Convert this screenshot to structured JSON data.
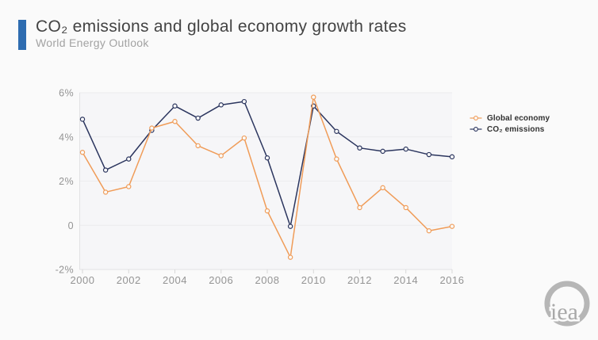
{
  "header": {
    "title": "CO₂ emissions and global economy growth rates",
    "subtitle": "World Energy Outlook"
  },
  "legend": {
    "items": [
      {
        "label": "Global economy",
        "color": "#f09c58"
      },
      {
        "label": "CO₂ emissions",
        "color": "#2b355e"
      }
    ]
  },
  "logo": {
    "text": "iea"
  },
  "colors": {
    "background": "#fafafa",
    "plot_background": "#f6f6f8",
    "grid": "#ececee",
    "axis": "#e2e2e4",
    "tick": "#d8d8d8",
    "axis_label": "#949494",
    "title": "#434343",
    "subtitle": "#a2a2a2",
    "accent": "#2e6cb0",
    "legend_text": "#323232",
    "logo": "#b6b6b6",
    "marker_fill": "#fafafa"
  },
  "chart_data": {
    "type": "line",
    "title": "CO₂ emissions and global economy growth rates",
    "subtitle": "World Energy Outlook",
    "x": [
      2000,
      2001,
      2002,
      2003,
      2004,
      2005,
      2006,
      2007,
      2008,
      2009,
      2010,
      2011,
      2012,
      2013,
      2014,
      2015,
      2016
    ],
    "series": [
      {
        "name": "Global economy",
        "color": "#f09c58",
        "values": [
          3.3,
          1.5,
          1.75,
          4.4,
          4.7,
          3.6,
          3.15,
          3.95,
          0.65,
          -1.45,
          5.8,
          3.0,
          0.8,
          1.7,
          0.8,
          -0.25,
          -0.05
        ]
      },
      {
        "name": "CO₂ emissions",
        "color": "#2b355e",
        "values": [
          4.8,
          2.5,
          3.0,
          4.3,
          5.4,
          4.85,
          5.45,
          5.6,
          3.05,
          -0.05,
          5.4,
          4.25,
          3.5,
          3.35,
          3.45,
          3.2,
          3.1
        ]
      }
    ],
    "yticks": [
      {
        "value": 6,
        "label": "6%"
      },
      {
        "value": 4,
        "label": "4%"
      },
      {
        "value": 2,
        "label": "2%"
      },
      {
        "value": 0,
        "label": "0"
      },
      {
        "value": -2,
        "label": "-2%"
      }
    ],
    "xticks": [
      2000,
      2002,
      2004,
      2006,
      2008,
      2010,
      2012,
      2014,
      2016
    ],
    "xlim": [
      2000,
      2016
    ],
    "ylim": [
      -2,
      6
    ],
    "grid": true,
    "legend_position": "right",
    "marker": "open-circle",
    "xlabel": "",
    "ylabel": ""
  }
}
